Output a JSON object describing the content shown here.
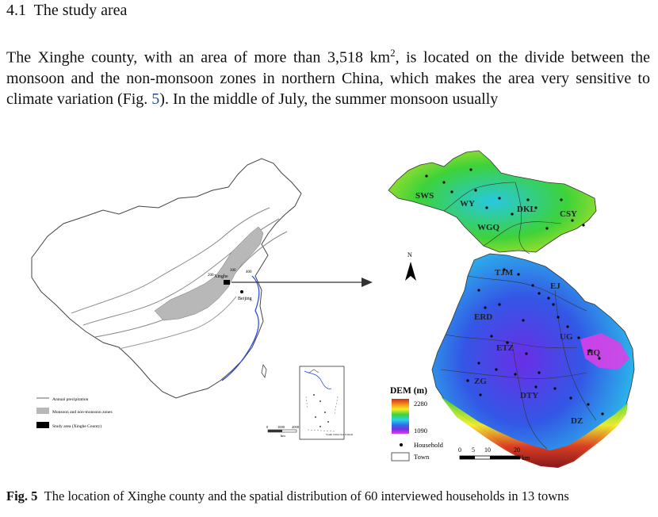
{
  "section": {
    "number": "4.1",
    "title": "The study area"
  },
  "paragraph": {
    "before_sup": "The Xinghe county, with an area of more than 3,518 km",
    "sup": "2",
    "after_sup": ", is located on the divide between the monsoon and the non-monsoon zones in northern China, which makes the area very sensitive to climate variation (Fig. ",
    "fig_ref": "5",
    "after_ref": "). In the middle of July, the summer monsoon usually"
  },
  "figure": {
    "china_map": {
      "place_labels": [
        "Xinghe",
        "Beijing"
      ],
      "isohyet_labels": [
        "200",
        "300",
        "400"
      ],
      "legend": [
        {
          "label": "Annual precipitation",
          "symbol": "line"
        },
        {
          "label": "Monsoon and non-monsoon zones",
          "symbol": "gray-box"
        },
        {
          "label": "Study area (Xinghe County)",
          "symbol": "black-box"
        }
      ],
      "scale_ticks": [
        "0",
        "1000",
        "2000"
      ],
      "scale_unit": "km",
      "inset_label": "South China Sea Islands"
    },
    "county_map": {
      "towns": [
        "SWS",
        "WY",
        "DKL",
        "CSY",
        "WGQ",
        "TJM",
        "EJ",
        "ERD",
        "UG",
        "HQ",
        "ETZ",
        "ZG",
        "DTY",
        "DZ"
      ],
      "north_label": "N",
      "dem_title": "DEM (m)",
      "dem_max": "2280",
      "dem_min": "1090",
      "dem_colors": [
        "#d7261e",
        "#f08c18",
        "#f2ee27",
        "#3dd23a",
        "#28d4ea",
        "#2f6be8",
        "#7a2fe4",
        "#e23de6"
      ],
      "legend_household": "Household",
      "legend_town": "Town",
      "scale_ticks": [
        "0",
        "5",
        "10",
        "20"
      ],
      "scale_unit": "km"
    }
  },
  "caption": {
    "label": "Fig. 5",
    "text": "The location of Xinghe county and the spatial distribution of 60 interviewed households in 13 towns"
  }
}
